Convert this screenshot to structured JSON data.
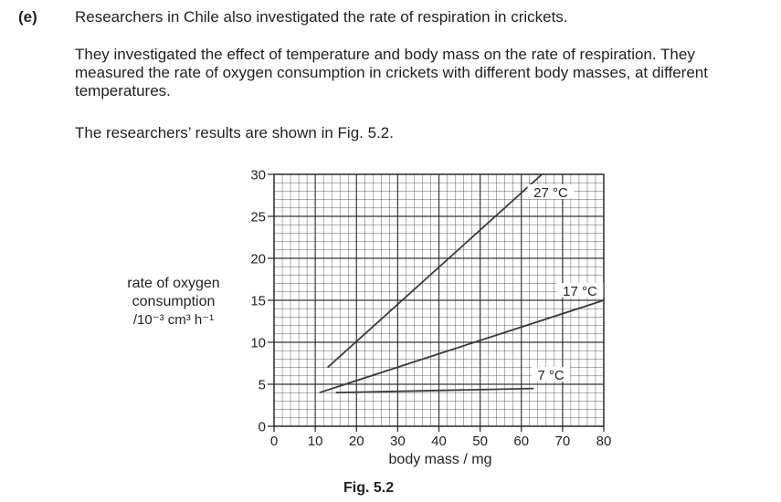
{
  "question": {
    "label": "(e)",
    "intro": "Researchers in Chile also investigated the rate of respiration in crickets.",
    "paragraph1": "They investigated the effect of temperature and body mass on the rate of respiration. They measured the rate of oxygen consumption in crickets with different body masses, at different temperatures.",
    "paragraph2": "The researchers’ results are shown in Fig. 5.2."
  },
  "figure": {
    "caption": "Fig. 5.2"
  },
  "chart_data": {
    "type": "line",
    "title": "",
    "xlabel": "body mass / mg",
    "ylabel_lines": [
      "rate of oxygen",
      "consumption"
    ],
    "ylabel_unit": "/10⁻³ cm³ h⁻¹",
    "xlim": [
      0,
      80
    ],
    "ylim": [
      0,
      30
    ],
    "x_ticks": [
      0,
      10,
      20,
      30,
      40,
      50,
      60,
      70,
      80
    ],
    "y_ticks": [
      0,
      5,
      10,
      15,
      20,
      25,
      30
    ],
    "grid": true,
    "series": [
      {
        "name": "27 °C",
        "points": [
          [
            13,
            7
          ],
          [
            65,
            30
          ]
        ]
      },
      {
        "name": "17 °C",
        "points": [
          [
            11,
            4
          ],
          [
            80,
            15
          ]
        ]
      },
      {
        "name": "7 °C",
        "points": [
          [
            15,
            4
          ],
          [
            63,
            4.5
          ]
        ]
      }
    ]
  }
}
